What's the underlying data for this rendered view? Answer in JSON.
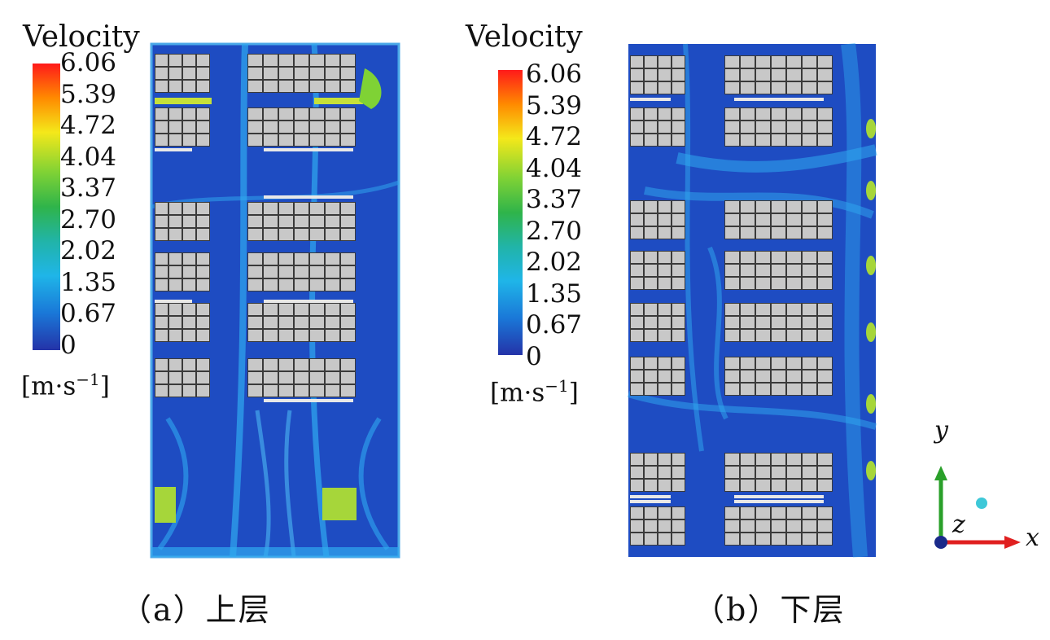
{
  "legend": {
    "title": "Velocity",
    "ticks": [
      "6.06",
      "5.39",
      "4.72",
      "4.04",
      "3.37",
      "2.70",
      "2.02",
      "1.35",
      "0.67",
      "0"
    ],
    "unit_base": "[m·s",
    "unit_exp": "−1",
    "unit_close": "]",
    "colors": [
      "#ff1a1a",
      "#ff8a00",
      "#f4e81a",
      "#7fd235",
      "#2fb44a",
      "#21b4a8",
      "#1fb5e8",
      "#1a78d8",
      "#2433a8"
    ]
  },
  "panels": [
    {
      "caption": "（a）上层"
    },
    {
      "caption": "（b）下层"
    }
  ],
  "axes": {
    "y": "y",
    "z": "z",
    "x": "x"
  },
  "colors": {
    "flow_bg": "#1e4cc2",
    "flow_light": "#2fa9f0",
    "rack": "#c8c8c8",
    "hot": "#a6d63a"
  }
}
